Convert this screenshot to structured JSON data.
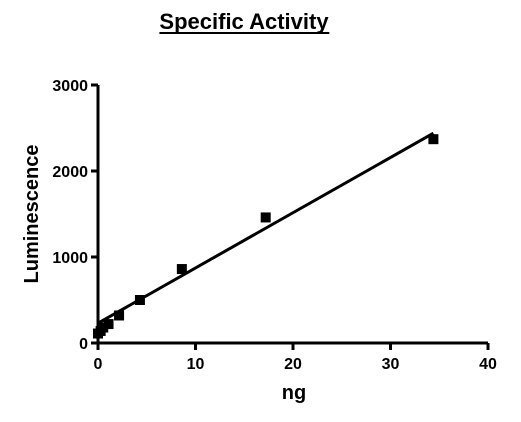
{
  "chart_data": {
    "type": "scatter",
    "title": "Specific Activity",
    "xlabel": "ng",
    "ylabel": "Luminescence",
    "xlim": [
      0,
      40
    ],
    "ylim": [
      0,
      3000
    ],
    "xticks": [
      0,
      10,
      20,
      30,
      40
    ],
    "yticks": [
      0,
      1000,
      2000,
      3000
    ],
    "xtick_labels": [
      "0",
      "10",
      "20",
      "30",
      "40"
    ],
    "ytick_labels": [
      "0",
      "1000",
      "2000",
      "3000"
    ],
    "grid": false,
    "legend": "none",
    "marker": "square",
    "color": "#000000",
    "points": {
      "x": [
        0,
        0.27,
        0.54,
        1.08,
        2.16,
        4.3,
        8.6,
        17.2,
        34.4
      ],
      "y": [
        110,
        140,
        180,
        220,
        320,
        500,
        860,
        1460,
        2370
      ]
    },
    "fit_line": {
      "x": [
        0,
        34.4
      ],
      "y": [
        230,
        2440
      ]
    }
  }
}
